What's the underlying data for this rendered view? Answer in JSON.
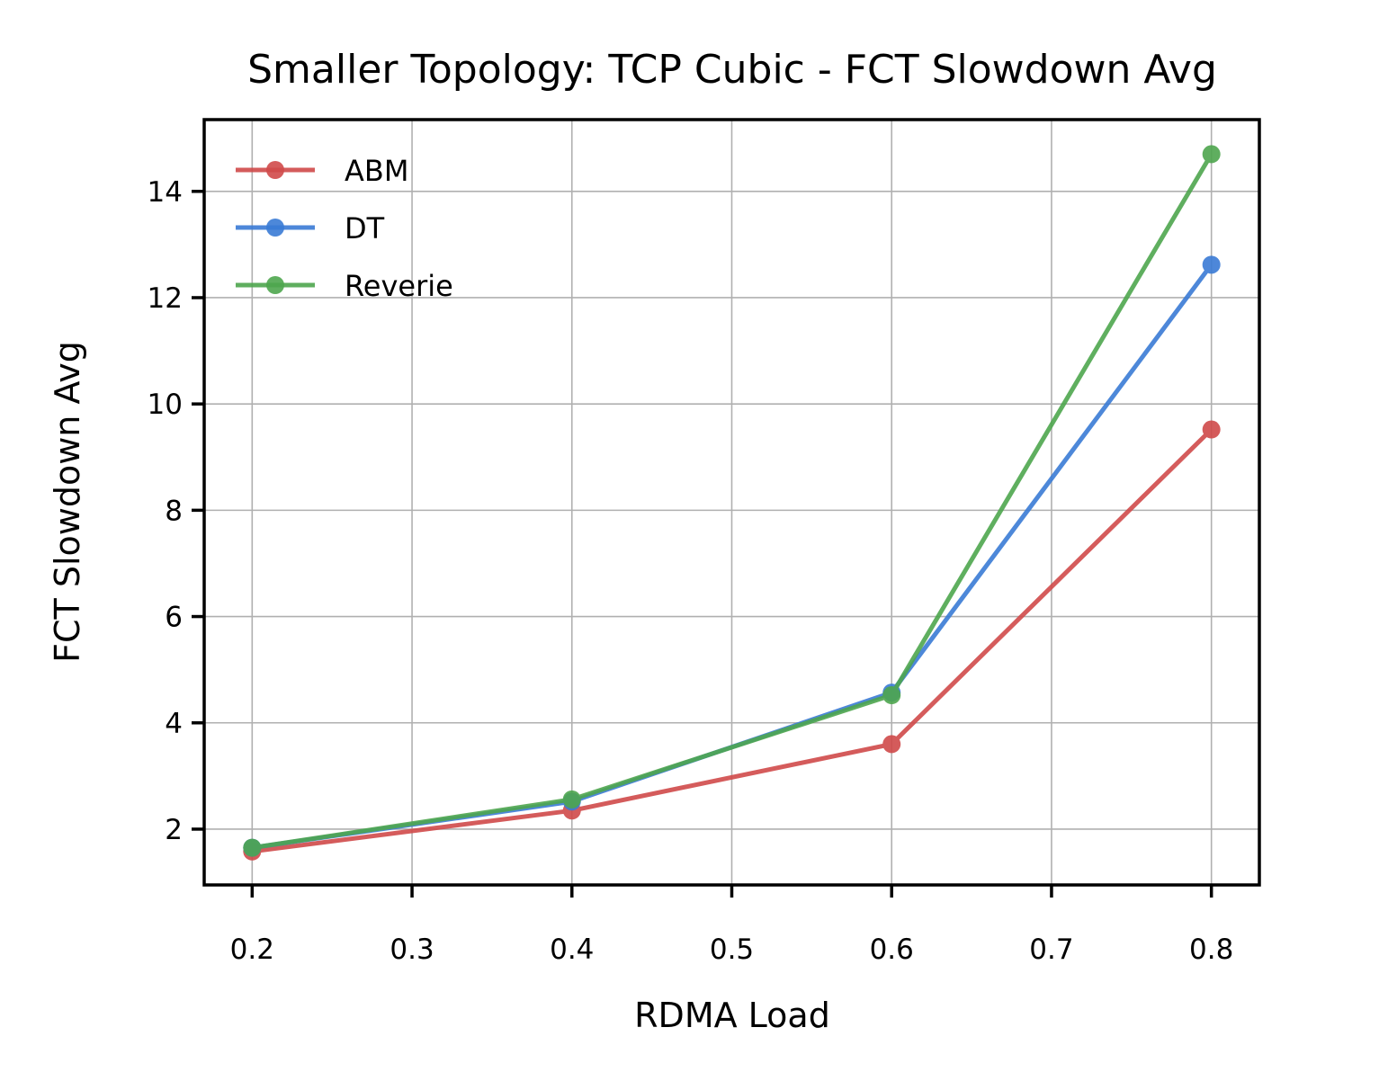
{
  "chart_data": {
    "type": "line",
    "title": "Smaller Topology: TCP Cubic - FCT Slowdown Avg",
    "xlabel": "RDMA Load",
    "ylabel": "FCT Slowdown Avg",
    "xlim": [
      0.17,
      0.83
    ],
    "ylim": [
      0.95,
      15.35
    ],
    "x_ticks": [
      0.2,
      0.3,
      0.4,
      0.5,
      0.6,
      0.7,
      0.8
    ],
    "x_tick_labels": [
      "0.2",
      "0.3",
      "0.4",
      "0.5",
      "0.6",
      "0.7",
      "0.8"
    ],
    "y_ticks": [
      2,
      4,
      6,
      8,
      10,
      12,
      14
    ],
    "y_tick_labels": [
      "2",
      "4",
      "6",
      "8",
      "10",
      "12",
      "14"
    ],
    "grid": true,
    "legend_position": "top-left",
    "x": [
      0.2,
      0.4,
      0.6,
      0.8
    ],
    "series": [
      {
        "name": "ABM",
        "color": "#d04a4a",
        "values": [
          1.58,
          2.35,
          3.6,
          9.52
        ]
      },
      {
        "name": "DT",
        "color": "#3a7bd5",
        "values": [
          1.65,
          2.52,
          4.57,
          12.62
        ]
      },
      {
        "name": "Reverie",
        "color": "#4ea64e",
        "values": [
          1.65,
          2.56,
          4.52,
          14.7
        ]
      }
    ]
  }
}
